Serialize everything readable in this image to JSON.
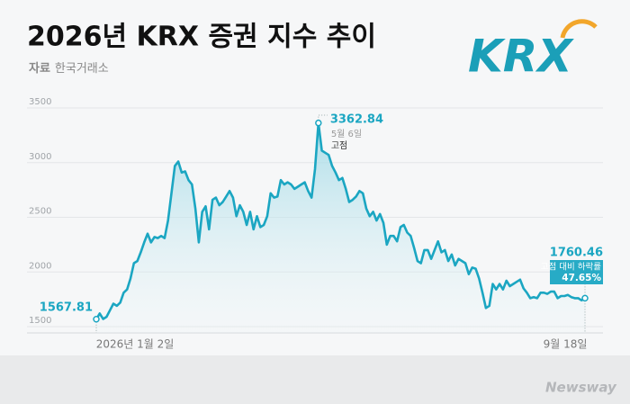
{
  "chart_data": {
    "type": "line",
    "title": "2026년 KRX 증권 지수 추이",
    "source_label": "자료",
    "source": "한국거래소",
    "categories": [
      "2026년 1월 2일",
      null,
      null,
      null,
      null,
      null,
      null,
      null,
      null,
      null,
      null,
      null,
      null,
      null,
      null,
      null,
      null,
      null,
      null,
      null,
      null,
      null,
      null,
      null,
      null,
      null,
      null,
      null,
      null,
      null,
      null,
      null,
      null,
      null,
      null,
      null,
      null,
      null,
      null,
      null,
      null,
      null,
      null,
      null,
      null,
      null,
      null,
      null,
      null,
      null,
      null,
      null,
      null,
      null,
      null,
      null,
      null,
      null,
      null,
      null,
      null,
      null,
      null,
      null,
      null,
      null,
      null,
      null,
      null,
      null,
      null,
      null,
      null,
      null,
      null,
      null,
      null,
      null,
      null,
      null,
      null,
      null,
      null,
      null,
      null,
      null,
      null,
      null,
      null,
      null,
      null,
      null,
      null,
      null,
      null,
      null,
      null,
      null,
      null,
      null,
      null,
      null,
      null,
      null,
      null,
      null,
      null,
      null,
      null,
      null,
      null,
      null,
      null,
      null,
      null,
      null,
      null,
      null,
      null,
      null,
      null,
      null,
      null,
      null,
      null,
      null,
      null,
      null,
      null,
      null,
      null,
      null,
      null,
      null,
      null,
      null,
      null,
      null,
      null,
      null,
      null,
      null,
      null,
      "9월 18일"
    ],
    "values": [
      1567.81,
      1620,
      1570,
      1590,
      1650,
      1710,
      1690,
      1720,
      1810,
      1840,
      1940,
      2080,
      2100,
      2180,
      2270,
      2350,
      2270,
      2320,
      2310,
      2330,
      2310,
      2470,
      2720,
      2970,
      3010,
      2910,
      2920,
      2840,
      2800,
      2580,
      2270,
      2550,
      2600,
      2390,
      2660,
      2680,
      2610,
      2640,
      2690,
      2740,
      2680,
      2510,
      2610,
      2550,
      2430,
      2550,
      2390,
      2510,
      2410,
      2430,
      2510,
      2720,
      2680,
      2690,
      2840,
      2800,
      2820,
      2800,
      2760,
      2780,
      2800,
      2820,
      2740,
      2680,
      2940,
      3362.84,
      3110,
      3090,
      3070,
      2970,
      2910,
      2840,
      2860,
      2760,
      2640,
      2660,
      2690,
      2740,
      2720,
      2580,
      2510,
      2550,
      2470,
      2530,
      2450,
      2250,
      2330,
      2330,
      2280,
      2410,
      2430,
      2360,
      2330,
      2220,
      2100,
      2080,
      2200,
      2200,
      2120,
      2200,
      2280,
      2180,
      2200,
      2100,
      2160,
      2060,
      2120,
      2100,
      2080,
      1980,
      2040,
      2030,
      1940,
      1810,
      1670,
      1690,
      1890,
      1840,
      1890,
      1840,
      1920,
      1870,
      1890,
      1910,
      1930,
      1850,
      1810,
      1760,
      1770,
      1760,
      1810,
      1810,
      1800,
      1820,
      1820,
      1760,
      1780,
      1780,
      1790,
      1770,
      1760,
      1760,
      1740,
      1760.46
    ],
    "color": "#1ba6c2",
    "ylim": [
      1500,
      3500
    ],
    "yticks": [
      1500,
      2000,
      2500,
      3000,
      3500
    ],
    "grid": true,
    "peak_date": "5월 6일",
    "peak_note": "고점",
    "drop_label": "고점 대비 하락률",
    "drop_rate": "47.65%"
  },
  "logo": "KRX",
  "watermark": "Newsway"
}
